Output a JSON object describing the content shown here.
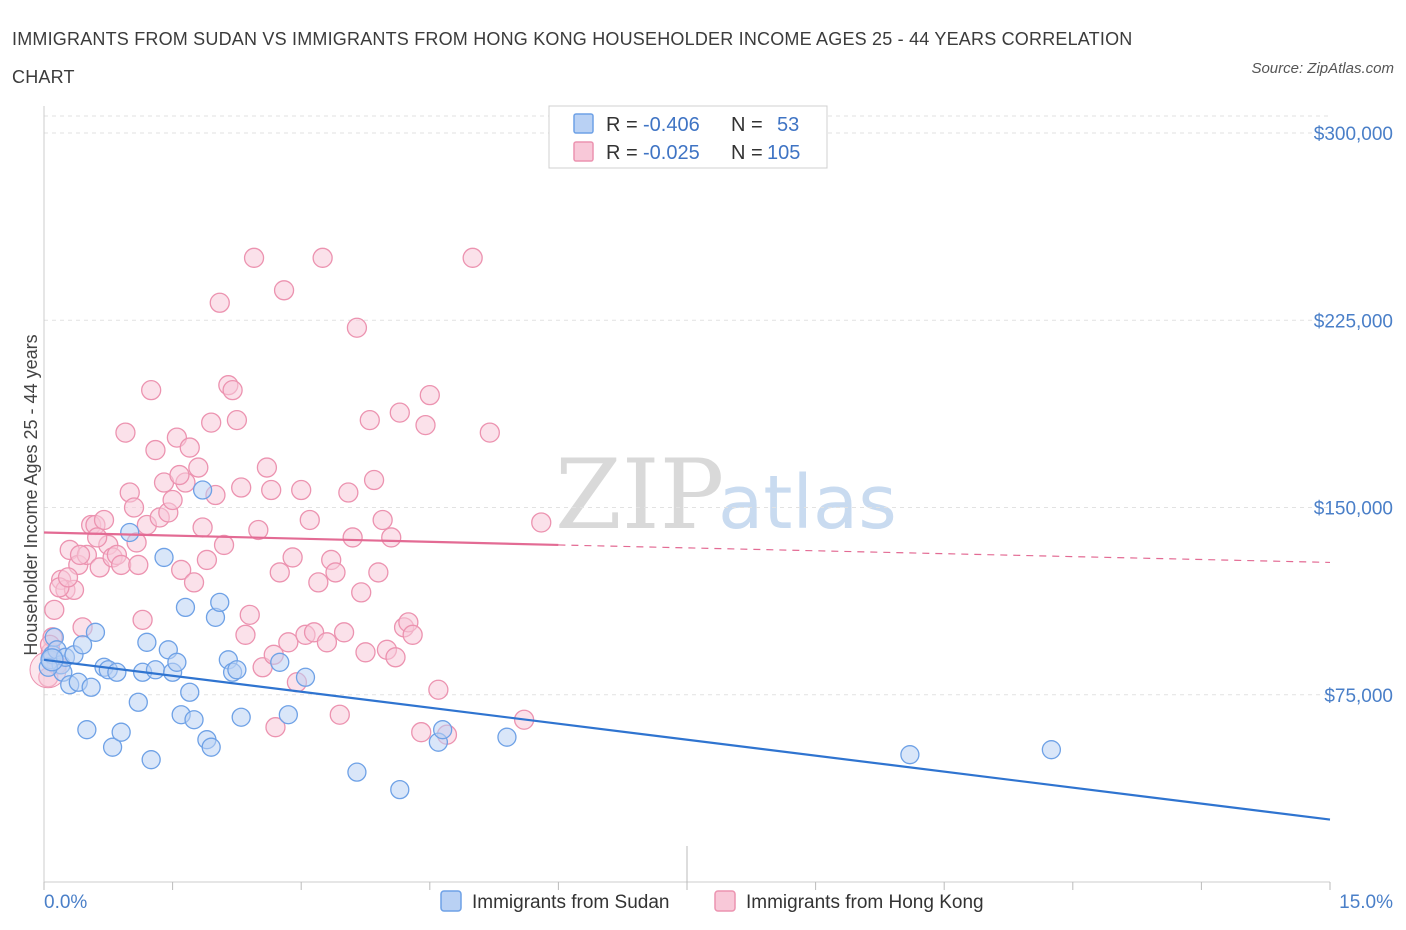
{
  "title": "IMMIGRANTS FROM SUDAN VS IMMIGRANTS FROM HONG KONG HOUSEHOLDER INCOME AGES 25 - 44 YEARS CORRELATION CHART",
  "source": "Source: ZipAtlas.com",
  "watermark": {
    "zip": "ZIP",
    "atlas": "atlas"
  },
  "chart_data": {
    "type": "scatter",
    "title": "IMMIGRANTS FROM SUDAN VS IMMIGRANTS FROM HONG KONG HOUSEHOLDER INCOME AGES 25 - 44 YEARS CORRELATION CHART",
    "xlabel": "",
    "ylabel": "Householder Income Ages 25 - 44 years",
    "xlim": [
      0,
      15
    ],
    "ylim": [
      0,
      300000
    ],
    "x_tick_labels": [
      "0.0%",
      "15.0%"
    ],
    "y_ticks": [
      75000,
      150000,
      225000,
      300000
    ],
    "y_tick_labels": [
      "$75,000",
      "$150,000",
      "$225,000",
      "$300,000"
    ],
    "grid": true,
    "legend_placement": "top-center",
    "stats": [
      {
        "r_label": "R =",
        "r": "-0.406",
        "n_label": "N =",
        "n": "53"
      },
      {
        "r_label": "R =",
        "r": "-0.025",
        "n_label": "N =",
        "n": "105"
      }
    ],
    "series": [
      {
        "name": "Immigrants from Sudan",
        "color": "#6ea1e6",
        "fill": "#b9d1f4",
        "line_color": "#2f74d0",
        "trend": {
          "x": [
            0,
            15
          ],
          "y": [
            89000,
            25000
          ]
        },
        "points": [
          [
            0.08,
            89000
          ],
          [
            0.1,
            91000
          ],
          [
            0.12,
            98000
          ],
          [
            0.15,
            93000
          ],
          [
            0.2,
            87000
          ],
          [
            0.22,
            84000
          ],
          [
            0.25,
            90000
          ],
          [
            0.3,
            79000
          ],
          [
            0.35,
            91000
          ],
          [
            0.4,
            80000
          ],
          [
            0.45,
            95000
          ],
          [
            0.5,
            61000
          ],
          [
            0.55,
            78000
          ],
          [
            0.6,
            100000
          ],
          [
            0.7,
            86000
          ],
          [
            0.75,
            85000
          ],
          [
            0.8,
            54000
          ],
          [
            0.85,
            84000
          ],
          [
            0.9,
            60000
          ],
          [
            1.0,
            140000
          ],
          [
            1.1,
            72000
          ],
          [
            1.15,
            84000
          ],
          [
            1.2,
            96000
          ],
          [
            1.25,
            49000
          ],
          [
            1.3,
            85000
          ],
          [
            1.4,
            130000
          ],
          [
            1.45,
            93000
          ],
          [
            1.5,
            84000
          ],
          [
            1.55,
            88000
          ],
          [
            1.6,
            67000
          ],
          [
            1.65,
            110000
          ],
          [
            1.7,
            76000
          ],
          [
            1.75,
            65000
          ],
          [
            1.85,
            157000
          ],
          [
            1.9,
            57000
          ],
          [
            1.95,
            54000
          ],
          [
            2.0,
            106000
          ],
          [
            2.05,
            112000
          ],
          [
            2.15,
            89000
          ],
          [
            2.2,
            84000
          ],
          [
            2.3,
            66000
          ],
          [
            2.25,
            85000
          ],
          [
            2.75,
            88000
          ],
          [
            2.85,
            67000
          ],
          [
            3.05,
            82000
          ],
          [
            3.65,
            44000
          ],
          [
            4.15,
            37000
          ],
          [
            4.6,
            56000
          ],
          [
            4.65,
            61000
          ],
          [
            5.4,
            58000
          ],
          [
            10.1,
            51000
          ],
          [
            11.75,
            53000
          ],
          [
            0.05,
            86000
          ]
        ]
      },
      {
        "name": "Immigrants from Hong Kong",
        "color": "#ec93b0",
        "fill": "#f8c8d8",
        "line_color": "#e36b94",
        "trend": {
          "x": [
            0,
            6
          ],
          "y": [
            140000,
            135000
          ]
        },
        "trend_dashed": {
          "x": [
            6,
            15
          ],
          "y": [
            135000,
            128000
          ]
        },
        "points": [
          [
            0.05,
            82000
          ],
          [
            0.08,
            92000
          ],
          [
            0.1,
            98000
          ],
          [
            0.12,
            109000
          ],
          [
            0.15,
            87000
          ],
          [
            0.2,
            121000
          ],
          [
            0.25,
            117000
          ],
          [
            0.3,
            133000
          ],
          [
            0.35,
            117000
          ],
          [
            0.4,
            127000
          ],
          [
            0.45,
            102000
          ],
          [
            0.5,
            131000
          ],
          [
            0.55,
            143000
          ],
          [
            0.6,
            143000
          ],
          [
            0.65,
            126000
          ],
          [
            0.7,
            145000
          ],
          [
            0.75,
            135000
          ],
          [
            0.8,
            130000
          ],
          [
            0.85,
            131000
          ],
          [
            0.9,
            127000
          ],
          [
            0.95,
            180000
          ],
          [
            1.0,
            156000
          ],
          [
            1.05,
            150000
          ],
          [
            1.1,
            127000
          ],
          [
            1.15,
            105000
          ],
          [
            1.2,
            143000
          ],
          [
            1.25,
            197000
          ],
          [
            1.3,
            173000
          ],
          [
            1.35,
            146000
          ],
          [
            1.4,
            160000
          ],
          [
            1.45,
            148000
          ],
          [
            1.5,
            153000
          ],
          [
            1.55,
            178000
          ],
          [
            1.6,
            125000
          ],
          [
            1.65,
            160000
          ],
          [
            1.7,
            174000
          ],
          [
            1.75,
            120000
          ],
          [
            1.8,
            166000
          ],
          [
            1.85,
            142000
          ],
          [
            1.9,
            129000
          ],
          [
            1.95,
            184000
          ],
          [
            2.0,
            155000
          ],
          [
            2.05,
            232000
          ],
          [
            2.1,
            135000
          ],
          [
            2.15,
            199000
          ],
          [
            2.2,
            197000
          ],
          [
            2.25,
            185000
          ],
          [
            2.3,
            158000
          ],
          [
            2.35,
            99000
          ],
          [
            2.4,
            107000
          ],
          [
            2.45,
            250000
          ],
          [
            2.5,
            141000
          ],
          [
            2.55,
            86000
          ],
          [
            2.6,
            166000
          ],
          [
            2.65,
            157000
          ],
          [
            2.7,
            62000
          ],
          [
            2.75,
            124000
          ],
          [
            2.8,
            237000
          ],
          [
            2.85,
            96000
          ],
          [
            2.9,
            130000
          ],
          [
            2.95,
            80000
          ],
          [
            3.0,
            157000
          ],
          [
            3.05,
            99000
          ],
          [
            3.1,
            145000
          ],
          [
            3.15,
            100000
          ],
          [
            3.2,
            120000
          ],
          [
            3.25,
            250000
          ],
          [
            3.3,
            96000
          ],
          [
            3.35,
            129000
          ],
          [
            3.4,
            124000
          ],
          [
            3.45,
            67000
          ],
          [
            3.5,
            100000
          ],
          [
            3.55,
            156000
          ],
          [
            3.6,
            138000
          ],
          [
            3.65,
            222000
          ],
          [
            3.7,
            116000
          ],
          [
            3.75,
            92000
          ],
          [
            3.8,
            185000
          ],
          [
            3.85,
            161000
          ],
          [
            3.9,
            124000
          ],
          [
            3.95,
            145000
          ],
          [
            4.0,
            93000
          ],
          [
            4.05,
            138000
          ],
          [
            4.1,
            90000
          ],
          [
            4.15,
            188000
          ],
          [
            4.2,
            102000
          ],
          [
            4.25,
            104000
          ],
          [
            4.3,
            99000
          ],
          [
            4.4,
            60000
          ],
          [
            4.45,
            183000
          ],
          [
            4.5,
            195000
          ],
          [
            4.6,
            77000
          ],
          [
            4.7,
            59000
          ],
          [
            5.0,
            250000
          ],
          [
            5.2,
            180000
          ],
          [
            5.6,
            65000
          ],
          [
            5.8,
            144000
          ],
          [
            0.07,
            95000
          ],
          [
            0.18,
            118000
          ],
          [
            0.28,
            122000
          ],
          [
            0.42,
            131000
          ],
          [
            0.62,
            138000
          ],
          [
            1.08,
            136000
          ],
          [
            1.58,
            163000
          ],
          [
            2.68,
            91000
          ]
        ]
      }
    ]
  }
}
